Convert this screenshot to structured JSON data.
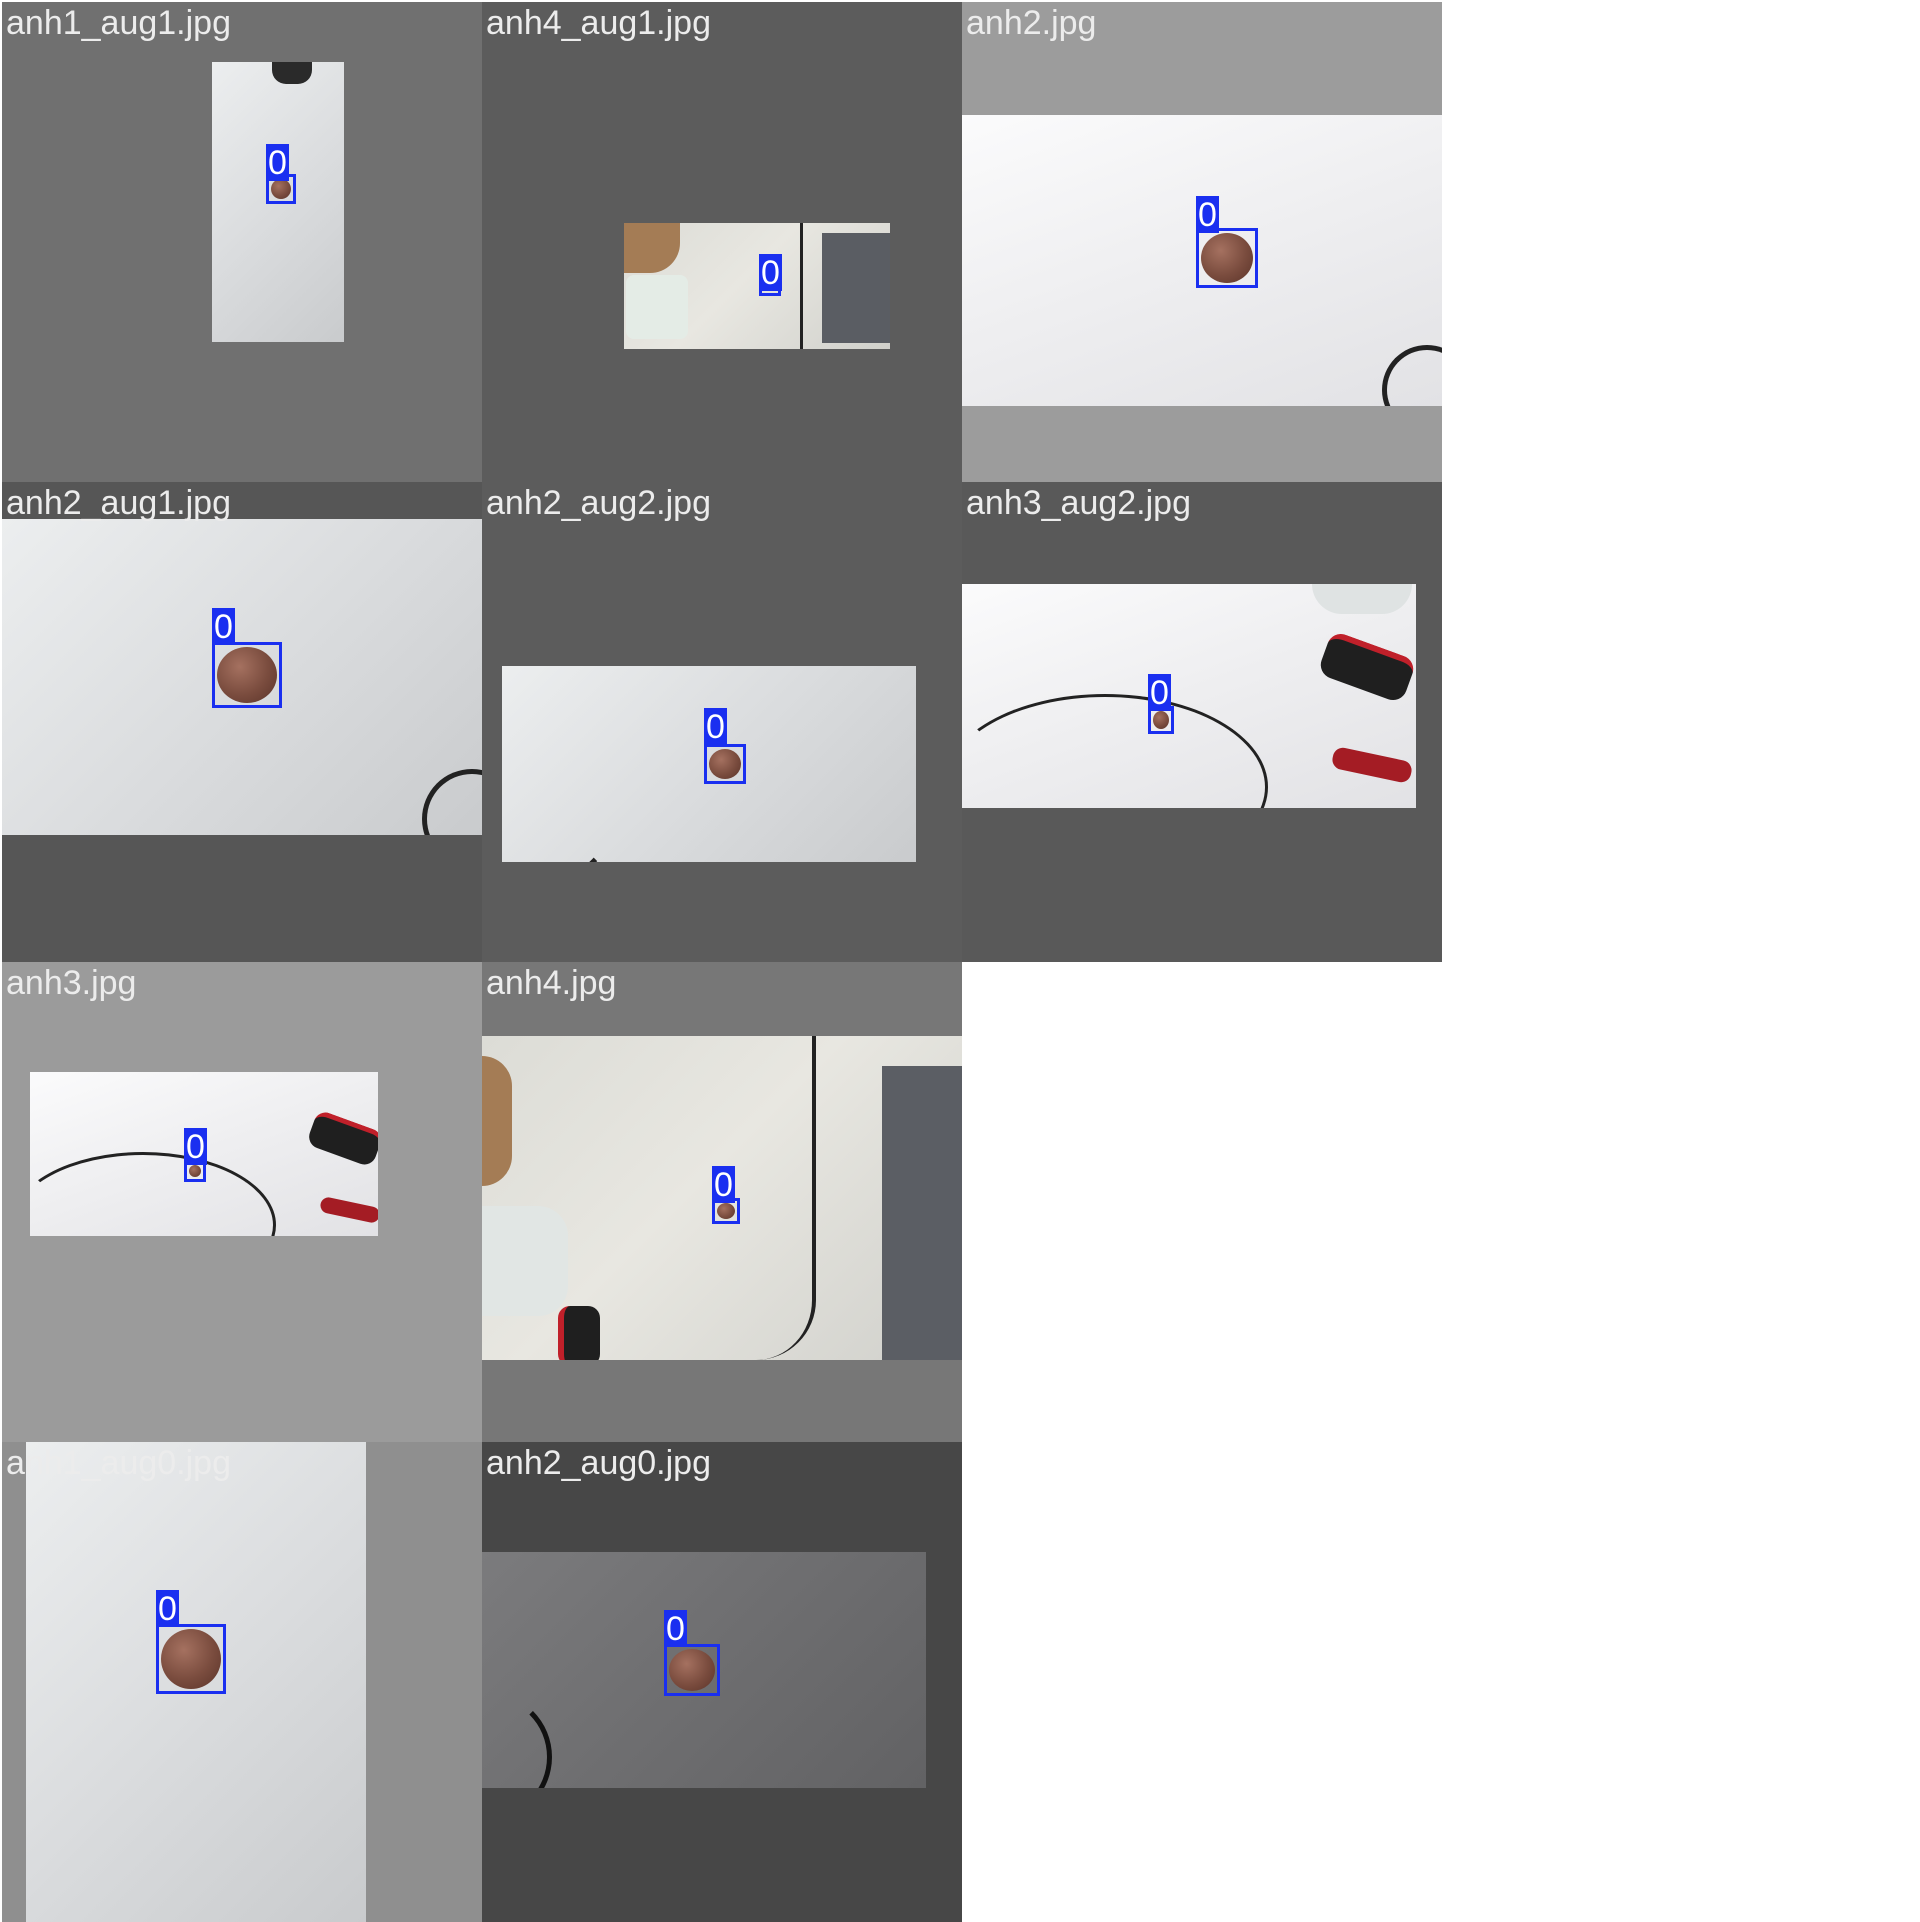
{
  "grid": {
    "tiles": [
      {
        "filename": "anh1_aug1.jpg",
        "labels": [
          "0"
        ]
      },
      {
        "filename": "anh4_aug1.jpg",
        "labels": [
          "0"
        ]
      },
      {
        "filename": "anh2.jpg",
        "labels": [
          "0"
        ]
      },
      {
        "filename": "anh2_aug1.jpg",
        "labels": [
          "0"
        ]
      },
      {
        "filename": "anh2_aug2.jpg",
        "labels": [
          "0"
        ]
      },
      {
        "filename": "anh3_aug2.jpg",
        "labels": [
          "0"
        ]
      },
      {
        "filename": "anh3.jpg",
        "labels": [
          "0"
        ]
      },
      {
        "filename": "anh4.jpg",
        "labels": [
          "0"
        ]
      },
      {
        "filename": "anh1_aug0.jpg",
        "labels": [
          "0"
        ]
      },
      {
        "filename": "anh2_aug0.jpg",
        "labels": [
          "0"
        ]
      }
    ]
  },
  "colors": {
    "bbox": "#1a2ff0",
    "label_text": "#ffffff",
    "filename_text": "#ececec"
  }
}
